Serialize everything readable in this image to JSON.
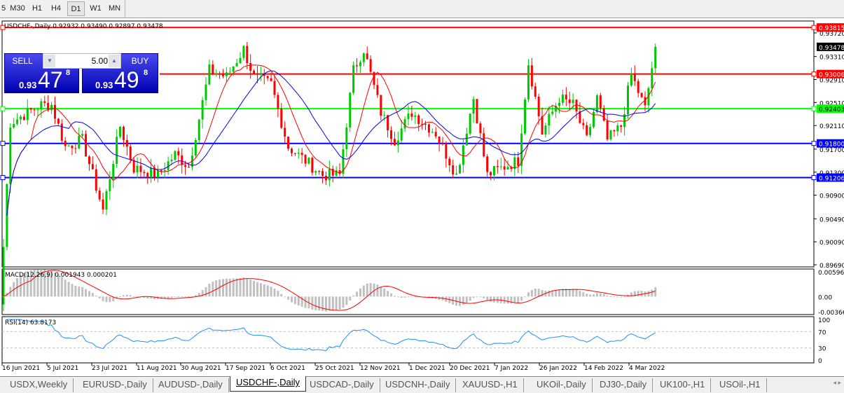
{
  "timeframes": [
    {
      "label": "5",
      "active": false
    },
    {
      "label": "M30",
      "active": false
    },
    {
      "label": "H1",
      "active": false
    },
    {
      "label": "H4",
      "active": false
    },
    {
      "label": "D1",
      "active": true
    },
    {
      "label": "W1",
      "active": false
    },
    {
      "label": "MN",
      "active": false
    }
  ],
  "chart": {
    "header": "USDCHF-,Daily  0.92932 0.93490 0.92897 0.93478",
    "symbol": "USDCHF-",
    "period": "Daily",
    "ohlc": {
      "open": "0.92932",
      "high": "0.93490",
      "low": "0.92897",
      "close": "0.93478"
    },
    "current_price": "0.93478",
    "price_axis": [
      "0.93720",
      "0.93310",
      "0.92910",
      "0.92510",
      "0.92110",
      "0.91700",
      "0.91300",
      "0.90900",
      "0.90490",
      "0.90090",
      "0.89690"
    ],
    "price_range": [
      0.8969,
      0.9372
    ],
    "hlines": [
      {
        "price": "0.93815",
        "color": "#ff0000"
      },
      {
        "price": "0.93006",
        "color": "#ff0000"
      },
      {
        "price": "0.92403",
        "color": "#00ff00"
      },
      {
        "price": "0.91800",
        "color": "#0000ff"
      },
      {
        "price": "0.91206",
        "color": "#0000ff"
      }
    ],
    "date_axis": [
      "16 Jun 2021",
      "5 Jul 2021",
      "23 Jul 2021",
      "11 Aug 2021",
      "30 Aug 2021",
      "17 Sep 2021",
      "6 Oct 2021",
      "25 Oct 2021",
      "12 Nov 2021",
      "1 Dec 2021",
      "20 Dec 2021",
      "7 Jan 2022",
      "26 Jan 2022",
      "14 Feb 2022",
      "4 Mar 2022"
    ],
    "colors": {
      "bull": "#00c800",
      "bear": "#ff0000",
      "ma_fast": "#ff0000",
      "ma_slow": "#0000ff",
      "macd_hist": "#c0c0c0",
      "macd_signal": "#ff0000",
      "rsi": "#1e90ff"
    },
    "price_path": [
      [
        "2021-06-16",
        0.9
      ],
      [
        "2021-06-18",
        0.9216
      ],
      [
        "2021-07-01",
        0.9247
      ],
      [
        "2021-07-06",
        0.9247
      ],
      [
        "2021-07-12",
        0.9174
      ],
      [
        "2021-07-19",
        0.9186
      ],
      [
        "2021-07-27",
        0.9064
      ],
      [
        "2021-08-03",
        0.921
      ],
      [
        "2021-08-09",
        0.9137
      ],
      [
        "2021-08-18",
        0.9125
      ],
      [
        "2021-08-25",
        0.9161
      ],
      [
        "2021-08-31",
        0.914
      ],
      [
        "2021-09-08",
        0.9307
      ],
      [
        "2021-09-15",
        0.9296
      ],
      [
        "2021-09-22",
        0.9344
      ],
      [
        "2021-09-27",
        0.9295
      ],
      [
        "2021-10-04",
        0.9283
      ],
      [
        "2021-10-11",
        0.9174
      ],
      [
        "2021-10-18",
        0.915
      ],
      [
        "2021-10-25",
        0.9125
      ],
      [
        "2021-11-01",
        0.9125
      ],
      [
        "2021-11-05",
        0.9307
      ],
      [
        "2021-11-10",
        0.9344
      ],
      [
        "2021-11-17",
        0.9234
      ],
      [
        "2021-11-23",
        0.9186
      ],
      [
        "2021-11-30",
        0.9234
      ],
      [
        "2021-12-09",
        0.9198
      ],
      [
        "2021-12-17",
        0.9125
      ],
      [
        "2021-12-24",
        0.9259
      ],
      [
        "2021-12-30",
        0.9125
      ],
      [
        "2022-01-05",
        0.9137
      ],
      [
        "2022-01-12",
        0.915
      ],
      [
        "2022-01-17",
        0.932
      ],
      [
        "2022-01-21",
        0.9198
      ],
      [
        "2022-01-28",
        0.9259
      ],
      [
        "2022-02-03",
        0.9247
      ],
      [
        "2022-02-09",
        0.9186
      ],
      [
        "2022-02-14",
        0.9259
      ],
      [
        "2022-02-17",
        0.9186
      ],
      [
        "2022-02-23",
        0.921
      ],
      [
        "2022-02-28",
        0.93
      ],
      [
        "2022-03-04",
        0.924
      ],
      [
        "2022-03-09",
        0.9348
      ]
    ]
  },
  "trade_panel": {
    "sell_label": "SELL",
    "buy_label": "BUY",
    "lot": "5.00",
    "sell_prefix": "0.93",
    "sell_big": "47",
    "sell_sup": "8",
    "buy_prefix": "0.93",
    "buy_big": "49",
    "buy_sup": "8"
  },
  "macd": {
    "label": "MACD(12,26,9) 0.001943 0.000201",
    "axis": [
      "0.005963",
      "0.00",
      "-0.00366"
    ]
  },
  "rsi": {
    "label": "RSI(14) 63.8173",
    "axis": [
      "100",
      "70",
      "30",
      "0"
    ]
  },
  "tabs": [
    {
      "label": "USDX,Weekly"
    },
    {
      "label": "EURUSD-,Daily"
    },
    {
      "label": "AUDUSD-,Daily"
    },
    {
      "label": "USDCHF-,Daily",
      "active": true
    },
    {
      "label": "USDCAD-,Daily"
    },
    {
      "label": "USDCNH-,Daily"
    },
    {
      "label": "XAUUSD-,H1"
    },
    {
      "label": "UKOil-,Daily"
    },
    {
      "label": "DJ30-,Daily"
    },
    {
      "label": "UK100-,H1"
    },
    {
      "label": "USOil-,H1"
    }
  ],
  "tab_nav": "◂ ▸"
}
